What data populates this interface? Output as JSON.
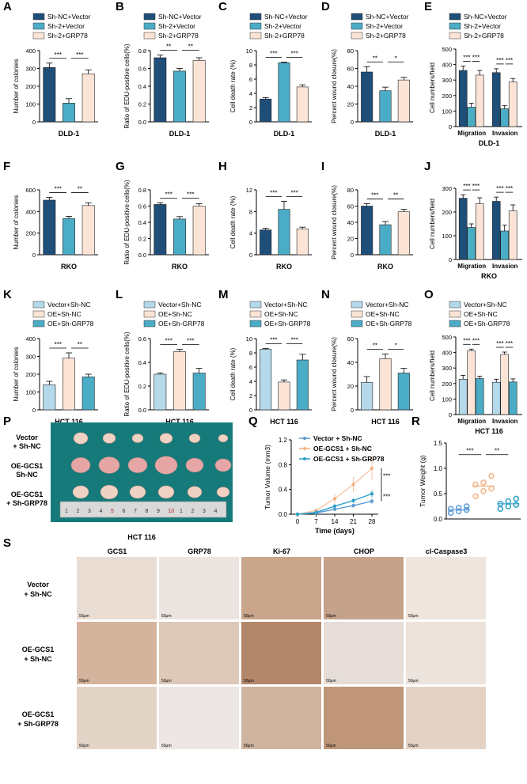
{
  "colors": {
    "navy": "#1f4e79",
    "teal": "#4bacc6",
    "peach": "#fbe4d5",
    "lightblue": "#b4d9ea",
    "scatter_blue": "#5b9bd5",
    "scatter_orange": "#f4b183",
    "scatter_teal": "#2e9fc9"
  },
  "stars": {
    "s3": "***",
    "s2": "**",
    "s1": "*"
  },
  "legend_dld": [
    "Sh-NC+Vector",
    "Sh-2+Vector",
    "Sh-2+GRP78"
  ],
  "legend_hct": [
    "Vector+Sh-NC",
    "OE+Sh-NC",
    "OE+Sh-GRP78"
  ],
  "legend_q": [
    "Vector + Sh-NC",
    "OE-GCS1 + Sh-NC",
    "OE-GCS1 + Sh-GRP78"
  ],
  "chart_data": [
    {
      "label": "A",
      "type": "bar",
      "xlabel": "DLD-1",
      "ylabel": "Number of colonies",
      "ylim": [
        0,
        400
      ],
      "ticks": [
        "0",
        "100",
        "200",
        "300",
        "400"
      ],
      "values": [
        305,
        105,
        270
      ],
      "errors": [
        25,
        25,
        22
      ],
      "sig": [
        "***",
        "***"
      ]
    },
    {
      "label": "B",
      "type": "bar",
      "xlabel": "DLD-1",
      "ylabel": "Ratio of EDU-positive cells(%)",
      "ylim": [
        0,
        0.8
      ],
      "ticks": [
        "0.0",
        "0.2",
        "0.4",
        "0.6",
        "0.8"
      ],
      "values": [
        0.72,
        0.57,
        0.69
      ],
      "errors": [
        0.03,
        0.03,
        0.03
      ],
      "sig": [
        "**",
        "**"
      ]
    },
    {
      "label": "C",
      "type": "bar",
      "xlabel": "DLD-1",
      "ylabel": "Cell death rate (%)",
      "ylim": [
        0,
        10
      ],
      "ticks": [
        "0",
        "2",
        "4",
        "6",
        "8",
        "10"
      ],
      "values": [
        3.2,
        8.3,
        4.9
      ],
      "errors": [
        0.2,
        0.1,
        0.3
      ],
      "sig": [
        "***",
        "***"
      ]
    },
    {
      "label": "D",
      "type": "bar",
      "xlabel": "DLD-1",
      "ylabel": "Percent wound closure(%)",
      "ylim": [
        0,
        80
      ],
      "ticks": [
        "0",
        "20",
        "40",
        "60",
        "80"
      ],
      "values": [
        56,
        35,
        47
      ],
      "errors": [
        6,
        4,
        3
      ],
      "sig": [
        "**",
        "*"
      ]
    },
    {
      "label": "E",
      "type": "groupbar",
      "xlabel": "DLD-1",
      "ylabel": "Cell numbers/field",
      "ylim": [
        0,
        500
      ],
      "ticks": [
        "0",
        "100",
        "200",
        "300",
        "400",
        "500"
      ],
      "categories": [
        "Migration",
        "Invasion"
      ],
      "series": [
        [
          362,
          348
        ],
        [
          125,
          115
        ],
        [
          332,
          288
        ]
      ],
      "errors": [
        [
          28,
          25
        ],
        [
          25,
          20
        ],
        [
          30,
          22
        ]
      ],
      "sig": [
        "***",
        "***",
        "***",
        "***"
      ]
    },
    {
      "label": "F",
      "type": "bar",
      "xlabel": "RKO",
      "ylabel": "Number of colonies",
      "ylim": [
        0,
        600
      ],
      "ticks": [
        "0",
        "200",
        "400",
        "600"
      ],
      "values": [
        505,
        335,
        455
      ],
      "errors": [
        25,
        20,
        25
      ],
      "sig": [
        "***",
        "**"
      ]
    },
    {
      "label": "G",
      "type": "bar",
      "xlabel": "RKO",
      "ylabel": "Ratio of EDU-positive cells(%)",
      "ylim": [
        0,
        0.8
      ],
      "ticks": [
        "0.0",
        "0.2",
        "0.4",
        "0.6",
        "0.8"
      ],
      "values": [
        0.62,
        0.44,
        0.6
      ],
      "errors": [
        0.02,
        0.03,
        0.03
      ],
      "sig": [
        "***",
        "***"
      ]
    },
    {
      "label": "H",
      "type": "bar",
      "xlabel": "RKO",
      "ylabel": "Cell death rate (%)",
      "ylim": [
        0,
        12
      ],
      "ticks": [
        "0",
        "4",
        "8",
        "12"
      ],
      "values": [
        4.6,
        8.4,
        4.8
      ],
      "errors": [
        0.3,
        1.5,
        0.3
      ],
      "sig": [
        "***",
        "***"
      ]
    },
    {
      "label": "I",
      "type": "bar",
      "xlabel": "RKO",
      "ylabel": "Percent wound closure(%)",
      "ylim": [
        0,
        80
      ],
      "ticks": [
        "0",
        "20",
        "40",
        "60",
        "80"
      ],
      "values": [
        60,
        37,
        53
      ],
      "errors": [
        3,
        4,
        3
      ],
      "sig": [
        "***",
        "**"
      ]
    },
    {
      "label": "J",
      "type": "groupbar",
      "xlabel": "RKO",
      "ylabel": "Cell numbers/field",
      "ylim": [
        0,
        300
      ],
      "ticks": [
        "0",
        "100",
        "200",
        "300"
      ],
      "categories": [
        "Migration",
        "Invasion"
      ],
      "series": [
        [
          258,
          245
        ],
        [
          135,
          120
        ],
        [
          235,
          205
        ]
      ],
      "errors": [
        [
          15,
          18
        ],
        [
          15,
          25
        ],
        [
          25,
          25
        ]
      ],
      "sig": [
        "***",
        "***",
        "***",
        "***"
      ]
    },
    {
      "label": "K",
      "type": "bar",
      "xlabel": "HCT 116",
      "ylabel": "Number of colonies",
      "ylim": [
        0,
        400
      ],
      "ticks": [
        "0",
        "100",
        "200",
        "300",
        "400"
      ],
      "values": [
        140,
        290,
        185
      ],
      "errors": [
        20,
        30,
        15
      ],
      "sig": [
        "***",
        "**"
      ]
    },
    {
      "label": "L",
      "type": "bar",
      "xlabel": "HCT 116",
      "ylabel": "Ratio of EDU-positive cells(%)",
      "ylim": [
        0,
        0.6
      ],
      "ticks": [
        "0.0",
        "0.2",
        "0.4",
        "0.6"
      ],
      "values": [
        0.3,
        0.49,
        0.31
      ],
      "errors": [
        0.01,
        0.02,
        0.04
      ],
      "sig": [
        "***",
        "***"
      ]
    },
    {
      "label": "M",
      "type": "bar",
      "xlabel": "HCT 116",
      "ylabel": "Cell death rate (%)",
      "ylim": [
        0,
        10
      ],
      "ticks": [
        "0",
        "2",
        "4",
        "6",
        "8",
        "10"
      ],
      "values": [
        8.5,
        3.9,
        7.0
      ],
      "errors": [
        0.1,
        0.3,
        0.8
      ],
      "sig": [
        "***",
        "***"
      ]
    },
    {
      "label": "N",
      "type": "bar",
      "xlabel": "HCT 116",
      "ylabel": "Percent wound closure(%)",
      "ylim": [
        0,
        60
      ],
      "ticks": [
        "0",
        "20",
        "40",
        "60"
      ],
      "values": [
        23,
        43,
        31
      ],
      "errors": [
        5,
        4,
        4
      ],
      "sig": [
        "**",
        "*"
      ]
    },
    {
      "label": "O",
      "type": "groupbar",
      "xlabel": "HCT 116",
      "ylabel": "Cell numbers/field",
      "ylim": [
        0,
        500
      ],
      "ticks": [
        "0",
        "100",
        "200",
        "300",
        "400",
        "500"
      ],
      "categories": [
        "Migration",
        "Invasion"
      ],
      "series": [
        [
          228,
          208
        ],
        [
          412,
          388
        ],
        [
          232,
          210
        ]
      ],
      "errors": [
        [
          25,
          20
        ],
        [
          10,
          15
        ],
        [
          15,
          20
        ]
      ],
      "sig": [
        "***",
        "***",
        "***",
        "***"
      ]
    },
    {
      "label": "Q",
      "type": "line",
      "xlabel": "Time (days)",
      "ylabel": "Tumor Volume (mm3)",
      "ylim": [
        0,
        1.2
      ],
      "ticks": [
        "0.0",
        "0.4",
        "0.8",
        "1.2"
      ],
      "x": [
        0,
        7,
        14,
        21,
        28
      ],
      "xticks": [
        "0",
        "7",
        "14",
        "21",
        "28"
      ],
      "series": [
        [
          0,
          0.02,
          0.08,
          0.14,
          0.21
        ],
        [
          0,
          0.06,
          0.25,
          0.48,
          0.74
        ],
        [
          0,
          0.03,
          0.13,
          0.22,
          0.33
        ]
      ],
      "errors": [
        [
          0,
          0.01,
          0.02,
          0.03,
          0.04
        ],
        [
          0,
          0.03,
          0.08,
          0.12,
          0.18
        ],
        [
          0,
          0.01,
          0.03,
          0.04,
          0.06
        ]
      ],
      "sig": [
        "***",
        "***"
      ]
    },
    {
      "label": "R",
      "type": "scatter",
      "ylabel": "Tumor Weight (g)",
      "ylim": [
        0,
        1.5
      ],
      "ticks": [
        "0.0",
        "0.5",
        "1.0",
        "1.5"
      ],
      "groups": [
        [
          0.12,
          0.15,
          0.18,
          0.2,
          0.22,
          0.25
        ],
        [
          0.45,
          0.55,
          0.6,
          0.68,
          0.72,
          0.85
        ],
        [
          0.2,
          0.25,
          0.28,
          0.3,
          0.35,
          0.4
        ]
      ],
      "means": [
        0.18,
        0.65,
        0.3
      ],
      "sig": [
        "***",
        "**"
      ]
    }
  ],
  "photo_p": {
    "label": "P",
    "rows": [
      "Vector\n+ Sh-NC",
      "OE-GCS1\nSh-NC",
      "OE-GCS1\n+ Sh-GRP78"
    ],
    "caption": "HCT 116",
    "ruler": "1 2 3 4 5 6 7 8 9 10 1 2 3 4"
  },
  "ihc": {
    "label": "S",
    "columns": [
      "GCS1",
      "GRP78",
      "Ki-67",
      "CHOP",
      "cl-Caspase3"
    ],
    "rows": [
      "Vector\n+ Sh-NC",
      "OE-GCS1\n+ Sh-NC",
      "OE-GCS1\n+ Sh-GRP78"
    ],
    "scale": "50μm"
  }
}
